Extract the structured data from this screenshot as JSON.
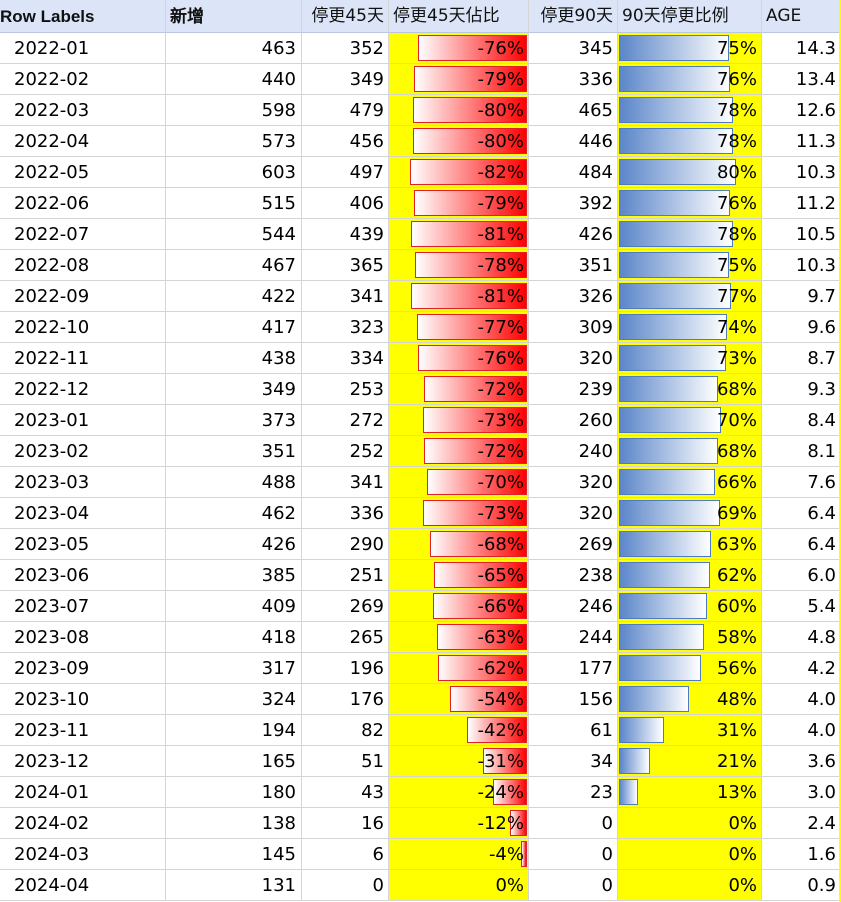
{
  "header": {
    "row_labels": "Row Labels",
    "new": "新增",
    "stop45": "停更45天",
    "ratio45": "停更45天佔比",
    "stop90": "停更90天",
    "ratio90": "90天停更比例",
    "age": "AGE"
  },
  "colors": {
    "highlight": "#ffff00",
    "bar_red": "#ff0000",
    "bar_blue": "#5b86c9",
    "header_bg": "#dbe5f7"
  },
  "rows": [
    {
      "label": "2022-01",
      "new": "463",
      "stop45": "352",
      "ratio45": "-76%",
      "stop90": "345",
      "ratio90": "75%",
      "age": "14.3",
      "r45": 0.76,
      "r90": 0.75
    },
    {
      "label": "2022-02",
      "new": "440",
      "stop45": "349",
      "ratio45": "-79%",
      "stop90": "336",
      "ratio90": "76%",
      "age": "13.4",
      "r45": 0.79,
      "r90": 0.76
    },
    {
      "label": "2022-03",
      "new": "598",
      "stop45": "479",
      "ratio45": "-80%",
      "stop90": "465",
      "ratio90": "78%",
      "age": "12.6",
      "r45": 0.8,
      "r90": 0.78
    },
    {
      "label": "2022-04",
      "new": "573",
      "stop45": "456",
      "ratio45": "-80%",
      "stop90": "446",
      "ratio90": "78%",
      "age": "11.3",
      "r45": 0.8,
      "r90": 0.78
    },
    {
      "label": "2022-05",
      "new": "603",
      "stop45": "497",
      "ratio45": "-82%",
      "stop90": "484",
      "ratio90": "80%",
      "age": "10.3",
      "r45": 0.82,
      "r90": 0.8
    },
    {
      "label": "2022-06",
      "new": "515",
      "stop45": "406",
      "ratio45": "-79%",
      "stop90": "392",
      "ratio90": "76%",
      "age": "11.2",
      "r45": 0.79,
      "r90": 0.76
    },
    {
      "label": "2022-07",
      "new": "544",
      "stop45": "439",
      "ratio45": "-81%",
      "stop90": "426",
      "ratio90": "78%",
      "age": "10.5",
      "r45": 0.81,
      "r90": 0.78
    },
    {
      "label": "2022-08",
      "new": "467",
      "stop45": "365",
      "ratio45": "-78%",
      "stop90": "351",
      "ratio90": "75%",
      "age": "10.3",
      "r45": 0.78,
      "r90": 0.75
    },
    {
      "label": "2022-09",
      "new": "422",
      "stop45": "341",
      "ratio45": "-81%",
      "stop90": "326",
      "ratio90": "77%",
      "age": "9.7",
      "r45": 0.81,
      "r90": 0.77
    },
    {
      "label": "2022-10",
      "new": "417",
      "stop45": "323",
      "ratio45": "-77%",
      "stop90": "309",
      "ratio90": "74%",
      "age": "9.6",
      "r45": 0.77,
      "r90": 0.74
    },
    {
      "label": "2022-11",
      "new": "438",
      "stop45": "334",
      "ratio45": "-76%",
      "stop90": "320",
      "ratio90": "73%",
      "age": "8.7",
      "r45": 0.76,
      "r90": 0.73
    },
    {
      "label": "2022-12",
      "new": "349",
      "stop45": "253",
      "ratio45": "-72%",
      "stop90": "239",
      "ratio90": "68%",
      "age": "9.3",
      "r45": 0.72,
      "r90": 0.68
    },
    {
      "label": "2023-01",
      "new": "373",
      "stop45": "272",
      "ratio45": "-73%",
      "stop90": "260",
      "ratio90": "70%",
      "age": "8.4",
      "r45": 0.73,
      "r90": 0.7
    },
    {
      "label": "2023-02",
      "new": "351",
      "stop45": "252",
      "ratio45": "-72%",
      "stop90": "240",
      "ratio90": "68%",
      "age": "8.1",
      "r45": 0.72,
      "r90": 0.68
    },
    {
      "label": "2023-03",
      "new": "488",
      "stop45": "341",
      "ratio45": "-70%",
      "stop90": "320",
      "ratio90": "66%",
      "age": "7.6",
      "r45": 0.7,
      "r90": 0.66
    },
    {
      "label": "2023-04",
      "new": "462",
      "stop45": "336",
      "ratio45": "-73%",
      "stop90": "320",
      "ratio90": "69%",
      "age": "6.4",
      "r45": 0.73,
      "r90": 0.69
    },
    {
      "label": "2023-05",
      "new": "426",
      "stop45": "290",
      "ratio45": "-68%",
      "stop90": "269",
      "ratio90": "63%",
      "age": "6.4",
      "r45": 0.68,
      "r90": 0.63
    },
    {
      "label": "2023-06",
      "new": "385",
      "stop45": "251",
      "ratio45": "-65%",
      "stop90": "238",
      "ratio90": "62%",
      "age": "6.0",
      "r45": 0.65,
      "r90": 0.62
    },
    {
      "label": "2023-07",
      "new": "409",
      "stop45": "269",
      "ratio45": "-66%",
      "stop90": "246",
      "ratio90": "60%",
      "age": "5.4",
      "r45": 0.66,
      "r90": 0.6
    },
    {
      "label": "2023-08",
      "new": "418",
      "stop45": "265",
      "ratio45": "-63%",
      "stop90": "244",
      "ratio90": "58%",
      "age": "4.8",
      "r45": 0.63,
      "r90": 0.58
    },
    {
      "label": "2023-09",
      "new": "317",
      "stop45": "196",
      "ratio45": "-62%",
      "stop90": "177",
      "ratio90": "56%",
      "age": "4.2",
      "r45": 0.62,
      "r90": 0.56
    },
    {
      "label": "2023-10",
      "new": "324",
      "stop45": "176",
      "ratio45": "-54%",
      "stop90": "156",
      "ratio90": "48%",
      "age": "4.0",
      "r45": 0.54,
      "r90": 0.48
    },
    {
      "label": "2023-11",
      "new": "194",
      "stop45": "82",
      "ratio45": "-42%",
      "stop90": "61",
      "ratio90": "31%",
      "age": "4.0",
      "r45": 0.42,
      "r90": 0.31
    },
    {
      "label": "2023-12",
      "new": "165",
      "stop45": "51",
      "ratio45": "-31%",
      "stop90": "34",
      "ratio90": "21%",
      "age": "3.6",
      "r45": 0.31,
      "r90": 0.21
    },
    {
      "label": "2024-01",
      "new": "180",
      "stop45": "43",
      "ratio45": "-24%",
      "stop90": "23",
      "ratio90": "13%",
      "age": "3.0",
      "r45": 0.24,
      "r90": 0.13
    },
    {
      "label": "2024-02",
      "new": "138",
      "stop45": "16",
      "ratio45": "-12%",
      "stop90": "0",
      "ratio90": "0%",
      "age": "2.4",
      "r45": 0.12,
      "r90": 0.0
    },
    {
      "label": "2024-03",
      "new": "145",
      "stop45": "6",
      "ratio45": "-4%",
      "stop90": "0",
      "ratio90": "0%",
      "age": "1.6",
      "r45": 0.04,
      "r90": 0.0
    },
    {
      "label": "2024-04",
      "new": "131",
      "stop45": "0",
      "ratio45": "0%",
      "stop90": "0",
      "ratio90": "0%",
      "age": "0.9",
      "r45": 0.0,
      "r90": 0.0
    }
  ]
}
